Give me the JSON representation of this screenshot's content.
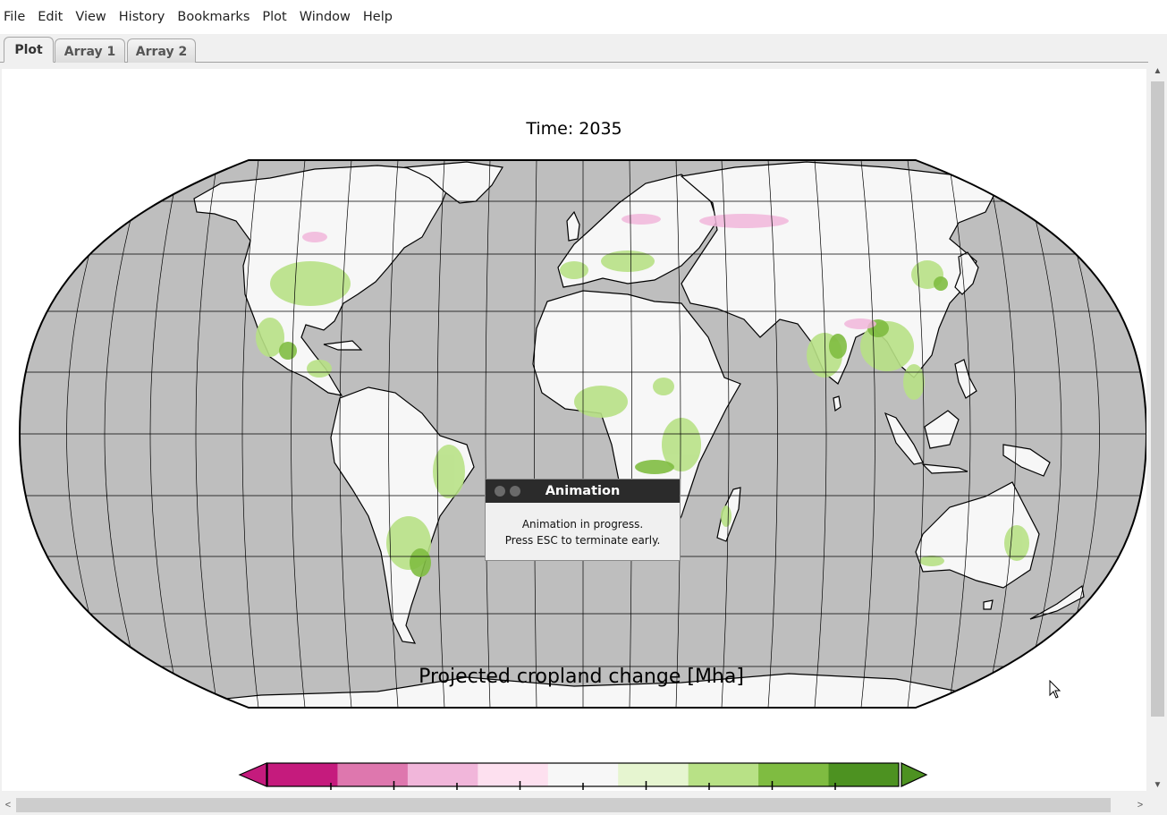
{
  "menu": [
    "File",
    "Edit",
    "View",
    "History",
    "Bookmarks",
    "Plot",
    "Window",
    "Help"
  ],
  "tabs": [
    {
      "label": "Plot",
      "active": true
    },
    {
      "label": "Array 1",
      "active": false
    },
    {
      "label": "Array 2",
      "active": false
    }
  ],
  "plot": {
    "title": "Time: 2035",
    "projection": "Robinson",
    "ocean_color": "#bebebe",
    "land_color": "#f7f7f7"
  },
  "colorbar": {
    "title": "Projected cropland change [Mha]",
    "colors": [
      "#c51b7d",
      "#de77ae",
      "#f1b6da",
      "#fde0ef",
      "#f7f7f7",
      "#e6f5d0",
      "#b8e186",
      "#7fbc41",
      "#4d9221"
    ],
    "extend_low_color": "#c51b7d",
    "extend_high_color": "#4d9221"
  },
  "dialog": {
    "title": "Animation",
    "line1": "Animation in progress.",
    "line2": "Press ESC to terminate early."
  },
  "scroll": {
    "up_icon": "▲",
    "down_icon": "▼",
    "left_icon": "<",
    "right_icon": ">"
  }
}
